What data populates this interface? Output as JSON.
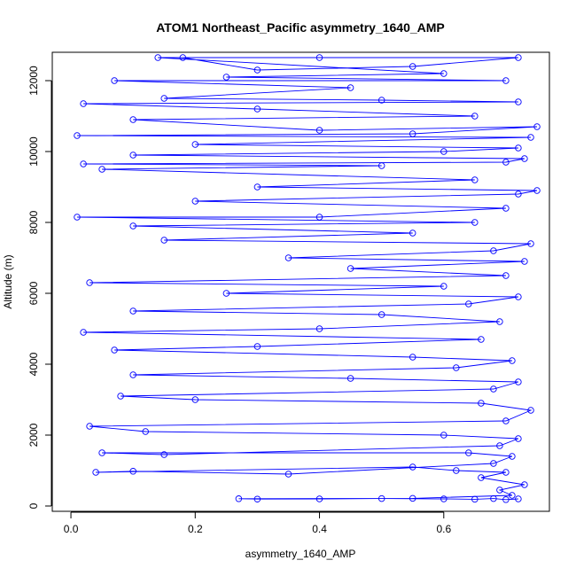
{
  "chart_data": {
    "type": "scatter",
    "title": "ATOM1 Northeast_Pacific asymmetry_1640_AMP",
    "xlabel": "asymmetry_1640_AMP",
    "ylabel": "Altitude (m)",
    "xlim": [
      -0.03,
      0.77
    ],
    "ylim": [
      -150,
      12800
    ],
    "x_ticks": [
      0.0,
      0.2,
      0.4,
      0.6
    ],
    "x_tick_labels": [
      "0.0",
      "0.2",
      "0.4",
      "0.6"
    ],
    "y_ticks": [
      0,
      2000,
      4000,
      6000,
      8000,
      10000,
      12000
    ],
    "y_tick_labels": [
      "0",
      "2000",
      "4000",
      "6000",
      "8000",
      "10000",
      "12000"
    ],
    "grid": false,
    "legend": "none",
    "series": [
      {
        "color": "#0000ff",
        "marker": "open-circle",
        "connect_points": true,
        "points": [
          [
            0.72,
            200
          ],
          [
            0.7,
            180
          ],
          [
            0.68,
            210
          ],
          [
            0.65,
            190
          ],
          [
            0.6,
            200
          ],
          [
            0.5,
            210
          ],
          [
            0.4,
            200
          ],
          [
            0.3,
            195
          ],
          [
            0.27,
            205
          ],
          [
            0.55,
            215
          ],
          [
            0.71,
            300
          ],
          [
            0.69,
            450
          ],
          [
            0.73,
            600
          ],
          [
            0.66,
            800
          ],
          [
            0.7,
            950
          ],
          [
            0.62,
            1000
          ],
          [
            0.55,
            1100
          ],
          [
            0.04,
            950
          ],
          [
            0.1,
            980
          ],
          [
            0.35,
            900
          ],
          [
            0.68,
            1200
          ],
          [
            0.71,
            1400
          ],
          [
            0.64,
            1500
          ],
          [
            0.05,
            1500
          ],
          [
            0.15,
            1450
          ],
          [
            0.69,
            1700
          ],
          [
            0.72,
            1900
          ],
          [
            0.6,
            2000
          ],
          [
            0.12,
            2100
          ],
          [
            0.03,
            2250
          ],
          [
            0.7,
            2400
          ],
          [
            0.74,
            2700
          ],
          [
            0.66,
            2900
          ],
          [
            0.2,
            3000
          ],
          [
            0.08,
            3100
          ],
          [
            0.68,
            3300
          ],
          [
            0.72,
            3500
          ],
          [
            0.45,
            3600
          ],
          [
            0.1,
            3700
          ],
          [
            0.62,
            3900
          ],
          [
            0.71,
            4100
          ],
          [
            0.55,
            4200
          ],
          [
            0.07,
            4400
          ],
          [
            0.3,
            4500
          ],
          [
            0.66,
            4700
          ],
          [
            0.02,
            4900
          ],
          [
            0.4,
            5000
          ],
          [
            0.69,
            5200
          ],
          [
            0.5,
            5400
          ],
          [
            0.1,
            5500
          ],
          [
            0.64,
            5700
          ],
          [
            0.72,
            5900
          ],
          [
            0.25,
            6000
          ],
          [
            0.6,
            6200
          ],
          [
            0.03,
            6300
          ],
          [
            0.7,
            6500
          ],
          [
            0.45,
            6700
          ],
          [
            0.73,
            6900
          ],
          [
            0.35,
            7000
          ],
          [
            0.68,
            7200
          ],
          [
            0.74,
            7400
          ],
          [
            0.15,
            7500
          ],
          [
            0.55,
            7700
          ],
          [
            0.1,
            7900
          ],
          [
            0.65,
            8000
          ],
          [
            0.01,
            8150
          ],
          [
            0.4,
            8150
          ],
          [
            0.7,
            8400
          ],
          [
            0.2,
            8600
          ],
          [
            0.72,
            8800
          ],
          [
            0.75,
            8900
          ],
          [
            0.3,
            9000
          ],
          [
            0.65,
            9200
          ],
          [
            0.05,
            9500
          ],
          [
            0.5,
            9600
          ],
          [
            0.02,
            9650
          ],
          [
            0.7,
            9700
          ],
          [
            0.73,
            9800
          ],
          [
            0.1,
            9900
          ],
          [
            0.6,
            10000
          ],
          [
            0.72,
            10100
          ],
          [
            0.2,
            10200
          ],
          [
            0.74,
            10400
          ],
          [
            0.01,
            10450
          ],
          [
            0.55,
            10500
          ],
          [
            0.75,
            10700
          ],
          [
            0.4,
            10600
          ],
          [
            0.1,
            10900
          ],
          [
            0.65,
            11000
          ],
          [
            0.3,
            11200
          ],
          [
            0.02,
            11350
          ],
          [
            0.72,
            11400
          ],
          [
            0.5,
            11450
          ],
          [
            0.15,
            11500
          ],
          [
            0.45,
            11800
          ],
          [
            0.07,
            12000
          ],
          [
            0.7,
            12000
          ],
          [
            0.25,
            12100
          ],
          [
            0.6,
            12200
          ],
          [
            0.14,
            12650
          ],
          [
            0.4,
            12650
          ],
          [
            0.72,
            12650
          ],
          [
            0.55,
            12400
          ],
          [
            0.3,
            12300
          ],
          [
            0.18,
            12650
          ]
        ]
      }
    ]
  }
}
